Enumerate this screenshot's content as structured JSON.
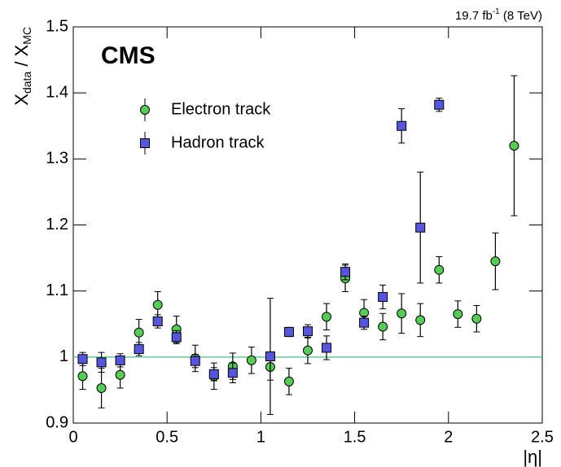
{
  "chart_data": {
    "type": "scatter",
    "title": "CMS",
    "subtitle": [
      "19.7 fb",
      "-1",
      " (8 TeV)"
    ],
    "x_label": "|η|",
    "y_label": [
      "X",
      "data",
      " / X",
      "MC"
    ],
    "xlim": [
      0,
      2.5
    ],
    "xticks": [
      0,
      0.5,
      1,
      1.5,
      2,
      2.5
    ],
    "ylim": [
      0.9,
      1.5
    ],
    "yticks": [
      0.9,
      1,
      1.1,
      1.2,
      1.3,
      1.4,
      1.5
    ],
    "reference_line": 1,
    "reference_color": "#66cc99",
    "legend": "upper left",
    "series": [
      {
        "name": "Electron track",
        "color": "#55cc55",
        "marker": "circle",
        "x": [
          0.05,
          0.15,
          0.25,
          0.35,
          0.45,
          0.55,
          0.65,
          0.75,
          0.85,
          0.95,
          1.05,
          1.15,
          1.25,
          1.35,
          1.45,
          1.55,
          1.65,
          1.75,
          1.85,
          1.95,
          2.05,
          2.15,
          2.25,
          2.35
        ],
        "values": [
          0.971,
          0.953,
          0.973,
          1.037,
          1.079,
          1.042,
          0.998,
          0.971,
          0.986,
          0.995,
          0.985,
          0.963,
          1.01,
          1.061,
          1.119,
          1.067,
          1.046,
          1.066,
          1.056,
          1.132,
          1.065,
          1.058,
          1.145,
          1.32
        ],
        "errors": [
          0.02,
          0.03,
          0.02,
          0.02,
          0.02,
          0.02,
          0.02,
          0.02,
          0.02,
          0.02,
          0.02,
          0.02,
          0.02,
          0.02,
          0.02,
          0.02,
          0.02,
          0.03,
          0.025,
          0.02,
          0.02,
          0.02,
          0.043,
          0.106
        ]
      },
      {
        "name": "Hadron track",
        "color": "#5555dd",
        "marker": "square",
        "x": [
          0.05,
          0.15,
          0.25,
          0.35,
          0.45,
          0.55,
          0.65,
          0.75,
          0.85,
          1.05,
          1.15,
          1.25,
          1.35,
          1.45,
          1.55,
          1.65,
          1.75,
          1.85,
          1.95
        ],
        "values": [
          0.997,
          0.992,
          0.995,
          1.012,
          1.054,
          1.03,
          0.994,
          0.974,
          0.976,
          1.001,
          1.038,
          1.039,
          1.014,
          1.129,
          1.052,
          1.091,
          1.35,
          1.196,
          1.382
        ],
        "errors": [
          0.01,
          0.015,
          0.01,
          0.01,
          0.01,
          0.01,
          0.01,
          0.01,
          0.015,
          0.088,
          0.007,
          0.01,
          0.018,
          0.012,
          0.01,
          0.018,
          0.026,
          0.084,
          0.01
        ]
      }
    ]
  }
}
